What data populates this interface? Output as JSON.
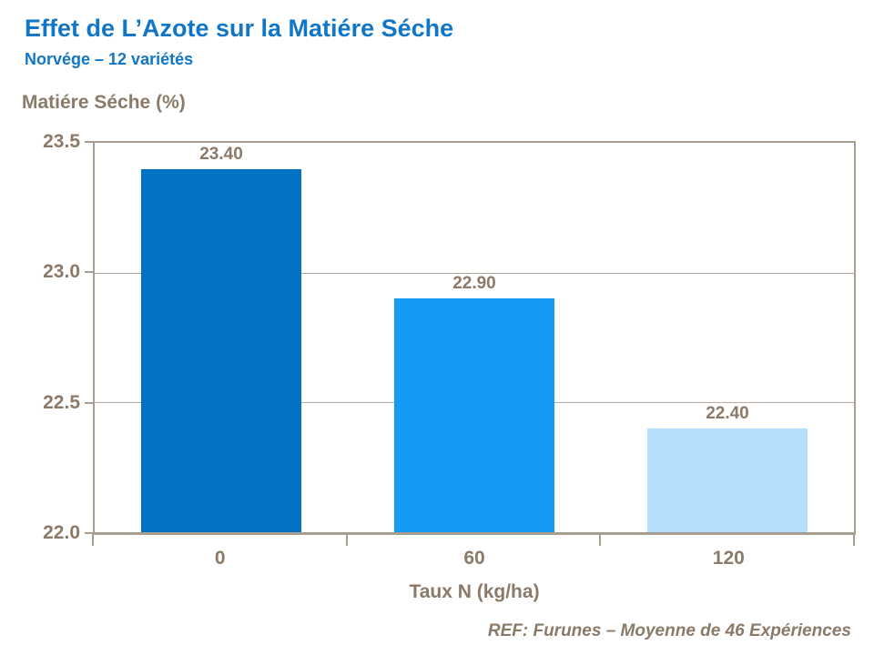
{
  "chart_data": {
    "type": "bar",
    "title": "Effet de L’Azote sur la Matiére Séche",
    "subtitle": "Norvége – 12 variétés",
    "ylabel": "Matiére Séche (%)",
    "xlabel": "Taux N (kg/ha)",
    "categories": [
      "0",
      "60",
      "120"
    ],
    "values": [
      23.4,
      22.9,
      22.4
    ],
    "value_labels": [
      "23.40",
      "22.90",
      "22.40"
    ],
    "bar_colors": [
      "#0571C2",
      "#159AF8",
      "#B5DEFB"
    ],
    "ylim": [
      22.0,
      23.5
    ],
    "ytick_values": [
      23.5,
      23.0,
      22.5,
      22.0
    ],
    "ytick_labels": [
      "23.5",
      "23.0",
      "22.5",
      "22.0"
    ],
    "grid": true,
    "legend": false,
    "annotation": "REF: Furunes – Moyenne de 46 Expériences"
  },
  "colors": {
    "title_blue": "#1176C6",
    "text_brown": "#8C7A68",
    "axis_line": "#A89E90",
    "gridline": "#B3AA9D",
    "background": "#FFFFFF"
  }
}
